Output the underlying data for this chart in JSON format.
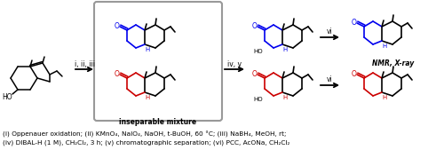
{
  "background_color": "#ffffff",
  "figsize": [
    5.0,
    1.78
  ],
  "dpi": 100,
  "footnote_line1": "(i) Oppenauer oxidation; (ii) KMnO₄, NaIO₄, NaOH, t-BuOH, 60 °C; (iii) NaBH₄, MeOH, rt;",
  "footnote_line2": "(iv) DIBAL-H (1 M), CH₂Cl₂, 3 h; (v) chromatographic separation; (vi) PCC, AcONa, CH₂Cl₂",
  "label_inseparable": "inseparable mixture",
  "label_nmr_xray": "NMR, X-ray",
  "arrow1_label": "i, ii, iii",
  "arrow2_label": "iv, v",
  "arrow_vi": "vi",
  "blue_color": "#0000ee",
  "red_color": "#cc0000",
  "black_color": "#000000",
  "box_color": "#999999"
}
